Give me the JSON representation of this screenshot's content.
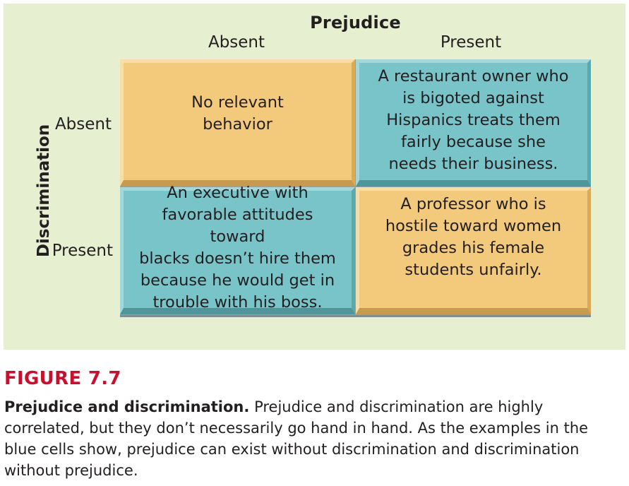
{
  "matrix": {
    "column_axis_title": "Prejudice",
    "column_headers": [
      "Absent",
      "Present"
    ],
    "row_axis_title": "Discrimination",
    "row_headers": [
      "Absent",
      "Present"
    ],
    "cells": {
      "absent_absent": "No relevant\nbehavior",
      "absent_present": "A restaurant owner who\nis bigoted against\nHispanics treats them\nfairly because she\nneeds their business.",
      "present_absent": "An executive with\nfavorable attitudes toward\nblacks doesn’t hire them\nbecause he would get in\ntrouble with his boss.",
      "present_present": "A professor who is\nhostile toward women\ngrades his female\nstudents unfairly."
    },
    "colors": {
      "panel_background": "#e6efd0",
      "orange_cell": "#f3c97b",
      "blue_cell": "#79c4c8",
      "figure_label": "#c8102e"
    }
  },
  "figure": {
    "label": "FIGURE 7.7",
    "caption_lead": "Prejudice and discrimination.",
    "caption_body": "Prejudice and discrimination are highly correlated, but they don’t necessarily go hand in hand. As the examples in the blue cells show, prejudice can exist without discrimination and discrimination without prejudice."
  }
}
